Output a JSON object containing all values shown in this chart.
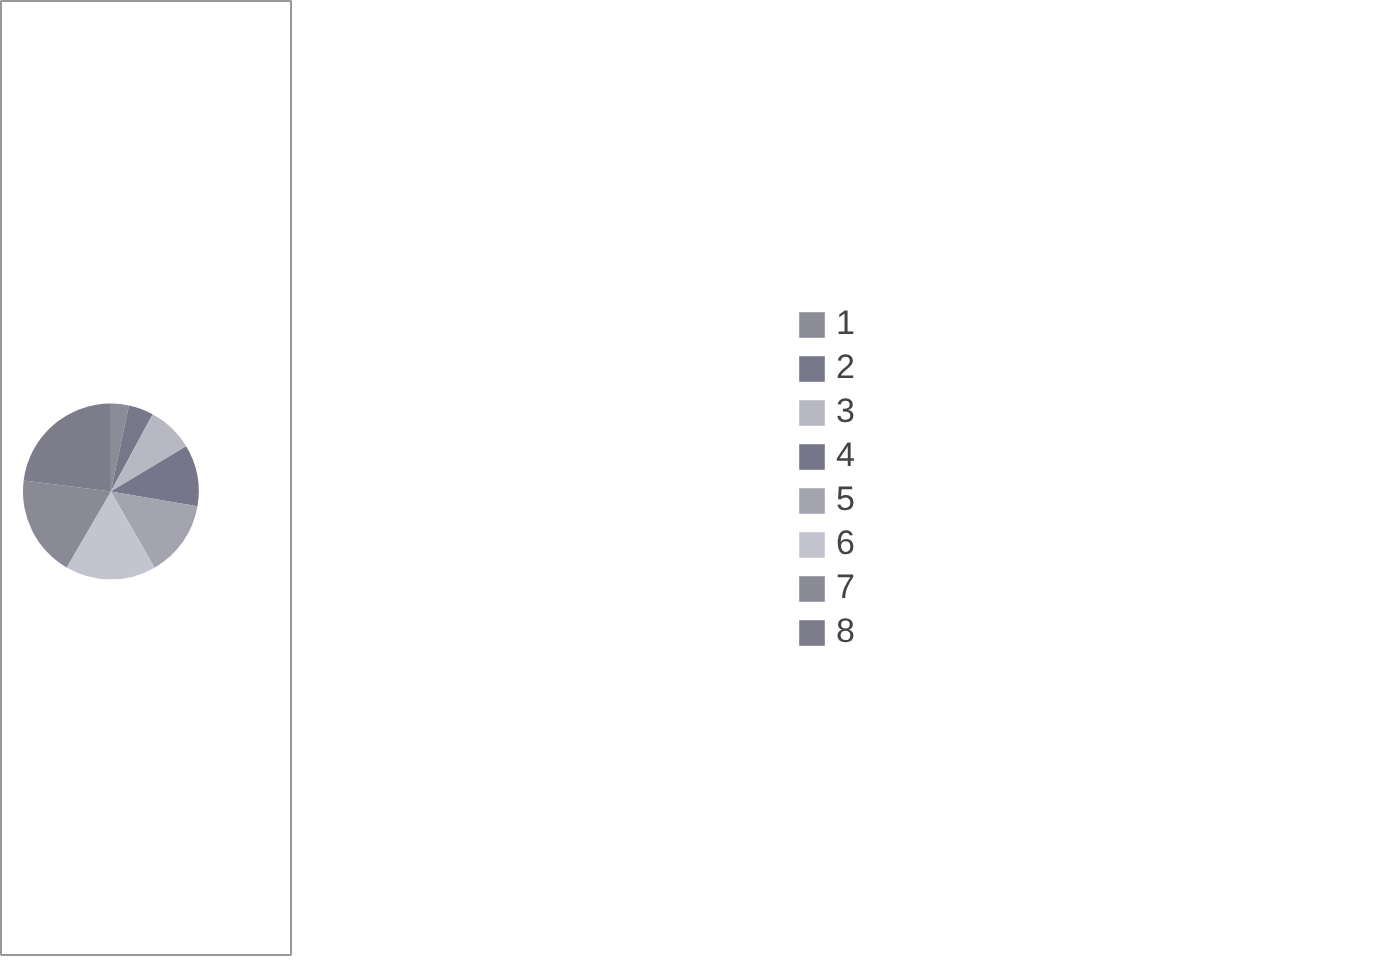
{
  "chart_data": {
    "type": "pie",
    "categories": [
      "1",
      "2",
      "3",
      "4",
      "5",
      "6",
      "7",
      "8"
    ],
    "values": [
      3.3,
      4.6,
      8.5,
      11.3,
      14.0,
      16.7,
      18.6,
      23.0
    ],
    "colors": [
      "#8c8c98",
      "#77778a",
      "#b8b8c4",
      "#76768a",
      "#a4a4b0",
      "#c4c4d0",
      "#8a8a96",
      "#7c7c8a"
    ],
    "legend": "right"
  }
}
